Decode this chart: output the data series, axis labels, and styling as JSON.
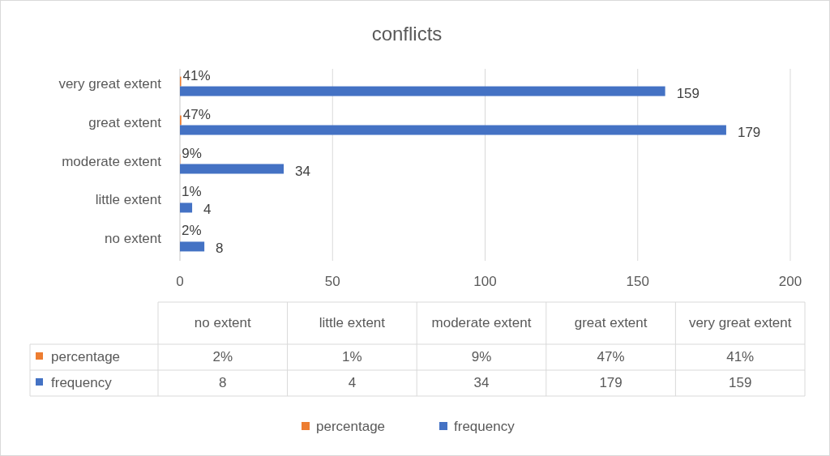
{
  "chart_data": {
    "type": "bar",
    "orientation": "horizontal",
    "title": "conflicts",
    "categories": [
      "very great extent",
      "great extent",
      "moderate extent",
      "little extent",
      "no extent"
    ],
    "series": [
      {
        "name": "percentage",
        "color": "#ed7d31",
        "values": [
          0.41,
          0.47,
          0.09,
          0.01,
          0.02
        ],
        "value_labels": [
          "41%",
          "47%",
          "9%",
          "1%",
          "2%"
        ]
      },
      {
        "name": "frequency",
        "color": "#4472c4",
        "values": [
          159,
          179,
          34,
          4,
          8
        ],
        "value_labels": [
          "159",
          "179",
          "34",
          "4",
          "8"
        ]
      }
    ],
    "xlim": [
      0,
      200
    ],
    "xticks": [
      0,
      50,
      100,
      150,
      200
    ],
    "grid": "x",
    "legend": "bottom",
    "data_labels": true
  }
}
